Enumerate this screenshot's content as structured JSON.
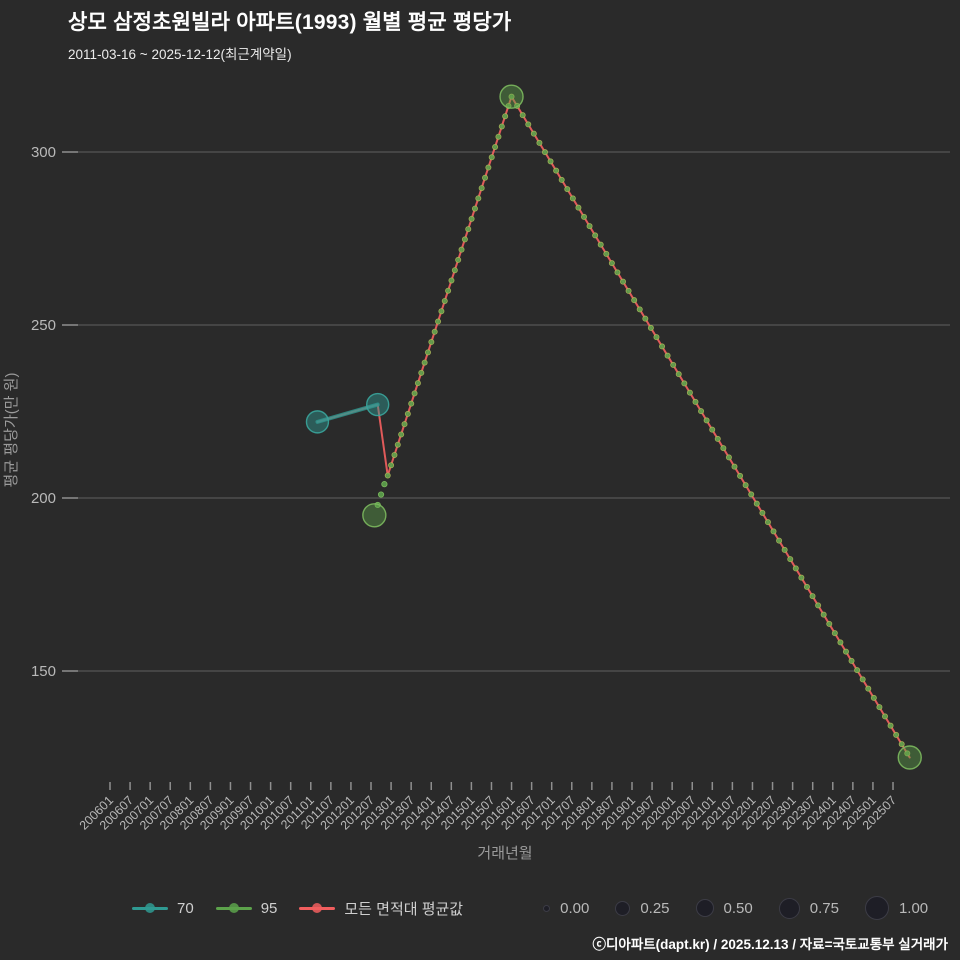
{
  "header": {
    "title": "상모 삼정초원빌라 아파트(1993) 월별 평균 평당가",
    "subtitle": "2011-03-16 ~ 2025-12-12(최근계약일)"
  },
  "footer": {
    "credit": "ⓒ디아파트(dapt.kr) / 2025.12.13 / 자료=국토교통부 실거래가"
  },
  "colors": {
    "background": "#2a2a2a",
    "grid": "#565656",
    "tick_mark": "#8f8f8f",
    "tick_text": "#b9b9b9",
    "axis_title": "#9b9b9b",
    "teal": "#2f9a92",
    "teal_stroke": "#3aa59c",
    "green": "#5ca24b",
    "green_stroke": "#7cb95e",
    "red": "#f15e5e",
    "bead_stroke": "#b9bd5c",
    "size_dot": "#1e1e26",
    "legend_text": "#cfcfcf"
  },
  "legend": {
    "series": [
      {
        "label": "70"
      },
      {
        "label": "95"
      },
      {
        "label": "모든 면적대 평균값"
      }
    ],
    "sizes": [
      "0.00",
      "0.25",
      "0.50",
      "0.75",
      "1.00"
    ]
  },
  "chart_data": {
    "type": "scatter",
    "title": "상모 삼정초원빌라 아파트(1993) 월별 평균 평당가",
    "xlabel": "거래년월",
    "ylabel": "평균 평당가(만 원)",
    "y_ticks": [
      150,
      200,
      250,
      300
    ],
    "ylim": [
      118,
      325
    ],
    "x_ticks": [
      "200601",
      "200607",
      "200701",
      "200707",
      "200801",
      "200807",
      "200901",
      "200907",
      "201001",
      "201007",
      "201101",
      "201107",
      "201201",
      "201207",
      "201301",
      "201307",
      "201401",
      "201407",
      "201501",
      "201507",
      "201601",
      "201607",
      "201701",
      "201707",
      "201801",
      "201807",
      "201901",
      "201907",
      "202001",
      "202007",
      "202101",
      "202107",
      "202201",
      "202207",
      "202301",
      "202307",
      "202401",
      "202407",
      "202501",
      "202507"
    ],
    "grid": "horizontal-only",
    "legend_position": "bottom",
    "marker_size_scale": {
      "labels": [
        "0.00",
        "0.25",
        "0.50",
        "0.75",
        "1.00"
      ],
      "meaning": "relative transaction count"
    },
    "series": [
      {
        "name": "70",
        "color_key": "teal",
        "mode": "line+markers",
        "points": [
          {
            "x": "201103",
            "y": 222,
            "size": 1.0
          },
          {
            "x": "201209",
            "y": 227,
            "size": 1.0
          }
        ]
      },
      {
        "name": "95",
        "color_key": "green",
        "mode": "markers",
        "knots": [
          {
            "x": "201208",
            "y": 195,
            "size": 1.0
          },
          {
            "x": "201601",
            "y": 316,
            "size": 1.0
          },
          {
            "x": "202512",
            "y": 125,
            "size": 1.0
          }
        ],
        "interpolated_small_markers": true,
        "small_points": [
          {
            "x": "201209",
            "y": 198
          },
          {
            "x": "201210",
            "y": 201
          },
          {
            "x": "201211",
            "y": 204
          }
        ]
      },
      {
        "name": "모든 면적대 평균값",
        "color_key": "red",
        "mode": "line",
        "points": [
          {
            "x": "201103",
            "y": 222
          },
          {
            "x": "201209",
            "y": 227
          },
          {
            "x": "201212",
            "y": 206.5
          },
          {
            "x": "201601",
            "y": 316
          },
          {
            "x": "202512",
            "y": 125
          }
        ]
      }
    ]
  }
}
